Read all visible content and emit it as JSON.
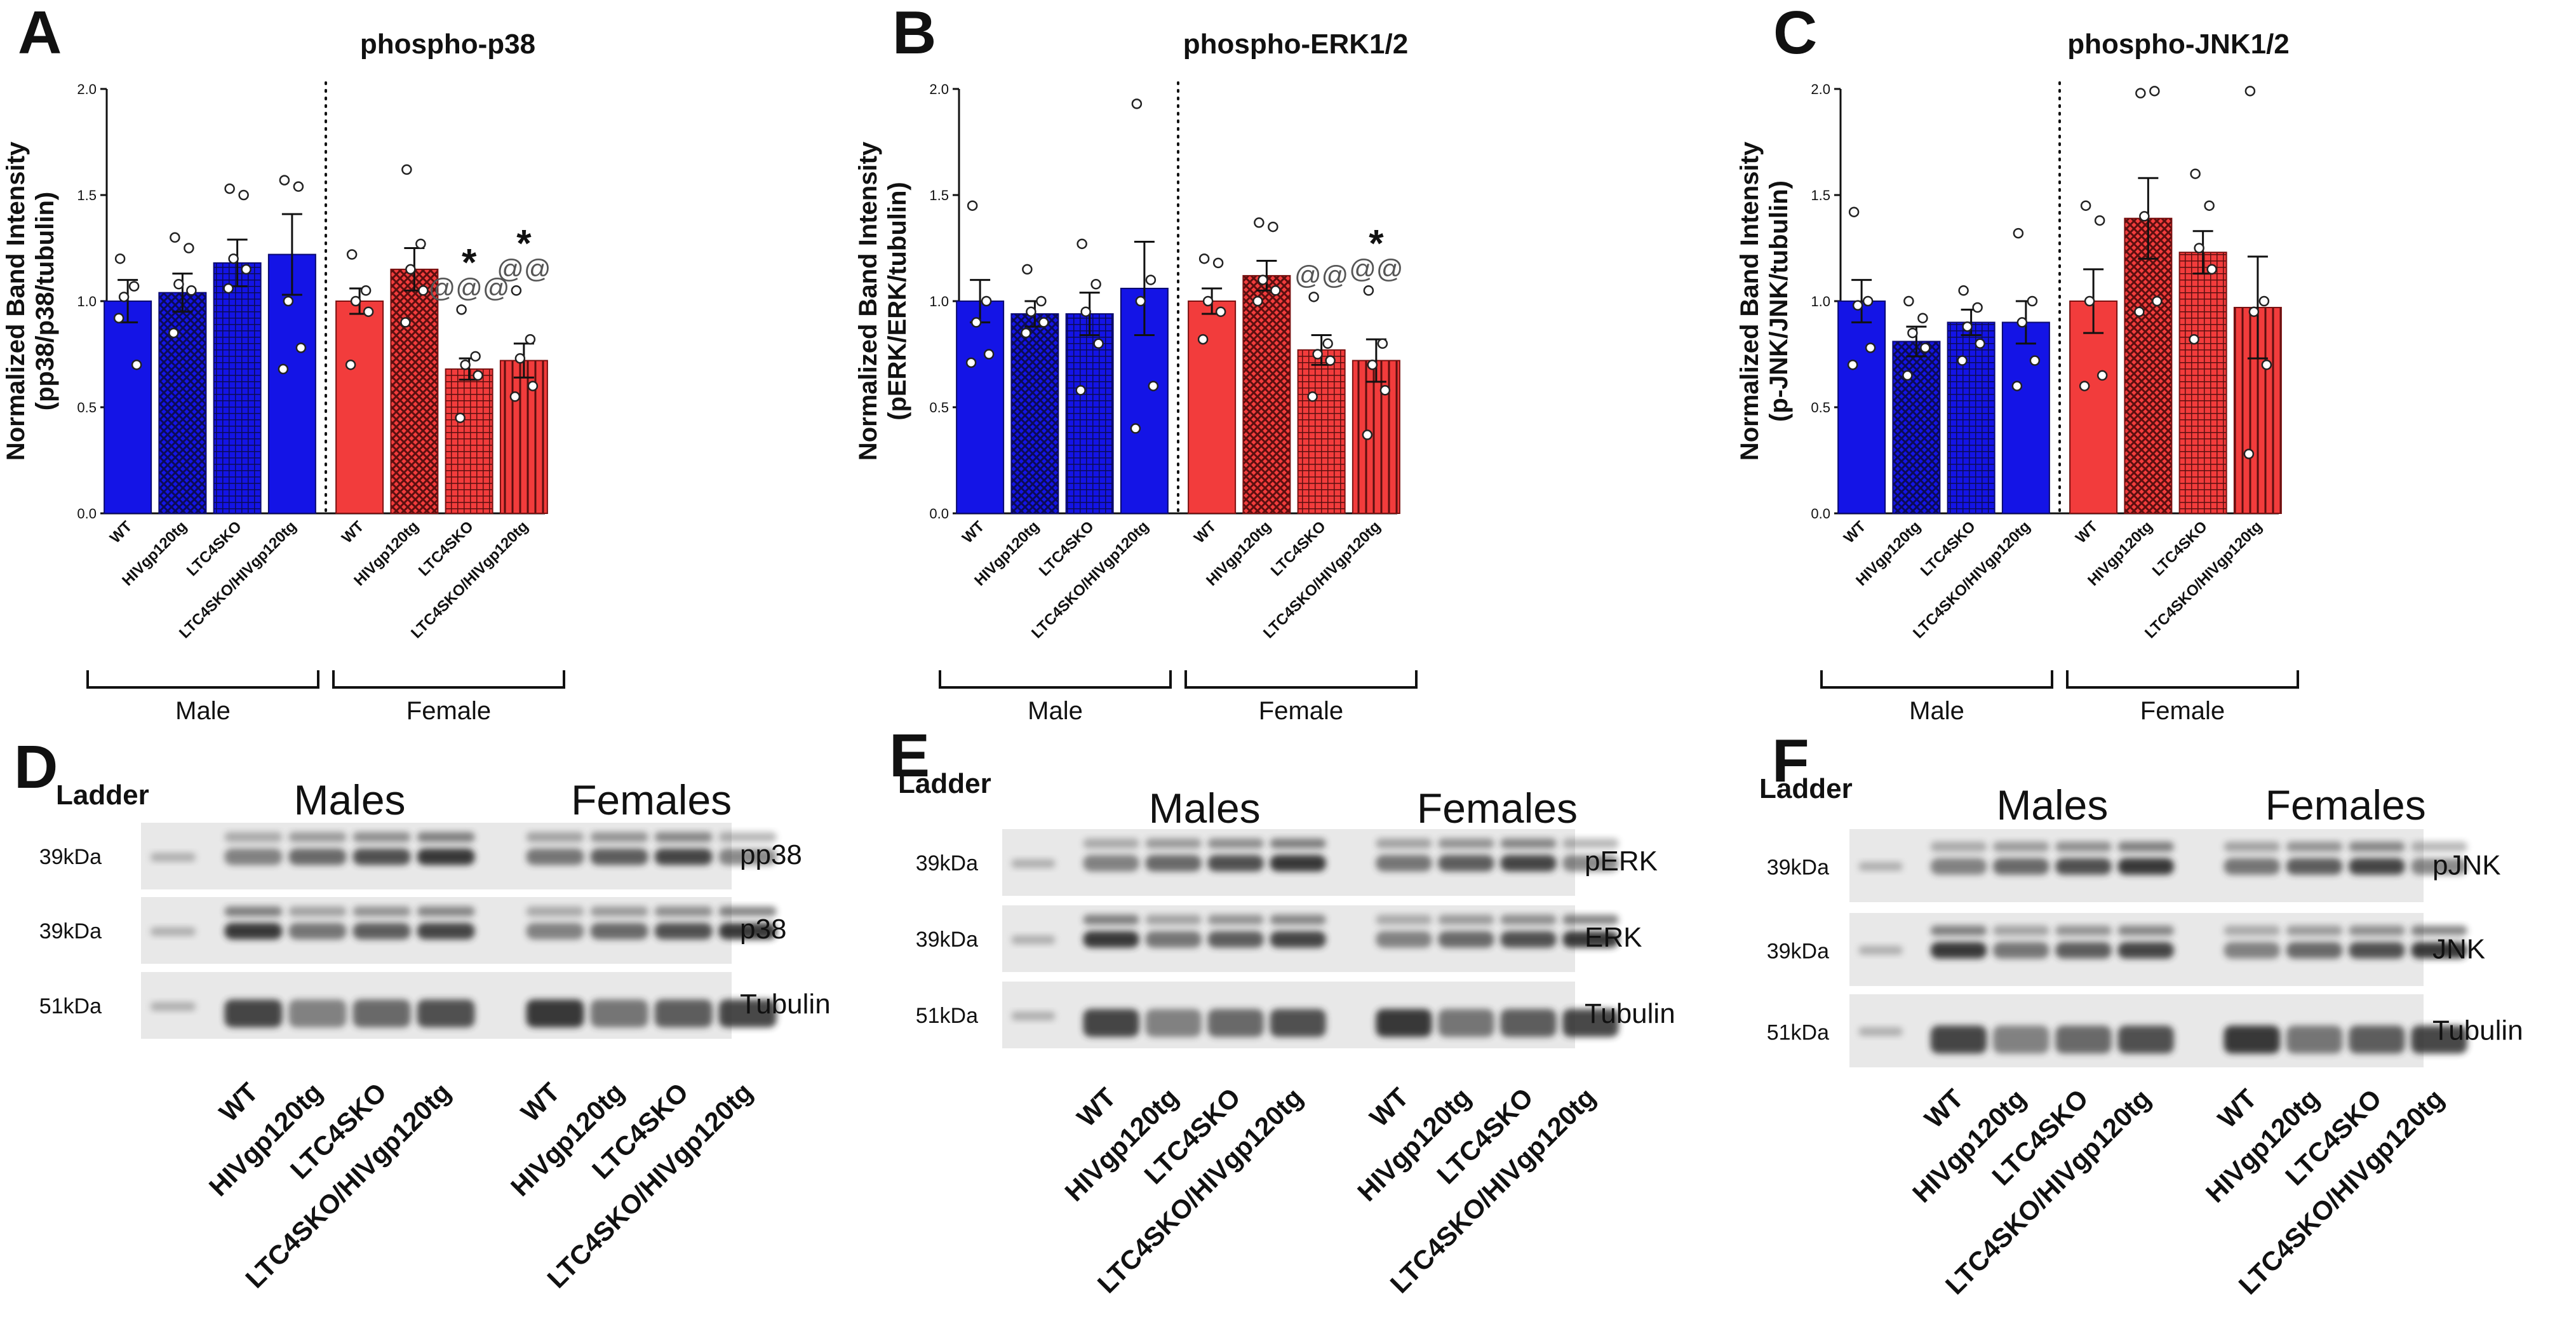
{
  "chart_data": [
    {
      "type": "bar",
      "panel": "A",
      "title": "phospho-p38",
      "ylabel": "Normalized Band Intensity (pp38/p38/tubulin)",
      "ylabel_lines": [
        "Normalized Band Intensity",
        "(pp38/p38/tubulin)"
      ],
      "ylim": [
        0,
        2
      ],
      "yticks": [
        "0.0",
        "0.5",
        "1.0",
        "1.5",
        "2.0"
      ],
      "categories": [
        "WT",
        "HIVgp120tg",
        "LTC4SKO",
        "LTC4SKO/HIVgp120tg",
        "WT",
        "HIVgp120tg",
        "LTC4SKO",
        "LTC4SKO/HIVgp120tg"
      ],
      "groups": [
        "Male",
        "Female"
      ],
      "sex": [
        "M",
        "M",
        "M",
        "M",
        "F",
        "F",
        "F",
        "F"
      ],
      "patterns": [
        "solid",
        "cross",
        "grid",
        "solid",
        "solid",
        "cross",
        "grid",
        "vstripe"
      ],
      "values": [
        1.0,
        1.04,
        1.18,
        1.22,
        1.0,
        1.15,
        0.68,
        0.72
      ],
      "errors": [
        0.1,
        0.09,
        0.11,
        0.19,
        0.06,
        0.1,
        0.05,
        0.08
      ],
      "points": [
        [
          1.2,
          1.07,
          1.02,
          0.7,
          0.92
        ],
        [
          1.3,
          1.25,
          1.08,
          1.05,
          0.85
        ],
        [
          1.53,
          1.5,
          1.2,
          1.15,
          1.06
        ],
        [
          1.57,
          1.54,
          1.0,
          0.78,
          0.68
        ],
        [
          1.22,
          1.05,
          1.0,
          0.95,
          0.7
        ],
        [
          1.62,
          1.27,
          1.15,
          1.05,
          0.9
        ],
        [
          0.96,
          0.74,
          0.7,
          0.65,
          0.45
        ],
        [
          1.05,
          0.82,
          0.73,
          0.6,
          0.55
        ]
      ],
      "annotations": [
        {
          "index": 6,
          "labels": [
            "*",
            "@@@"
          ]
        },
        {
          "index": 7,
          "labels": [
            "*",
            "@@"
          ]
        }
      ]
    },
    {
      "type": "bar",
      "panel": "B",
      "title": "phospho-ERK1/2",
      "ylabel": "Normalized Band Intensity (pERK/ERK/tubulin)",
      "ylabel_lines": [
        "Normalized Band Intensity",
        "(pERK/ERK/tubulin)"
      ],
      "ylim": [
        0,
        2
      ],
      "yticks": [
        "0.0",
        "0.5",
        "1.0",
        "1.5",
        "2.0"
      ],
      "categories": [
        "WT",
        "HIVgp120tg",
        "LTC4SKO",
        "LTC4SKO/HIVgp120tg",
        "WT",
        "HIVgp120tg",
        "LTC4SKO",
        "LTC4SKO/HIVgp120tg"
      ],
      "groups": [
        "Male",
        "Female"
      ],
      "sex": [
        "M",
        "M",
        "M",
        "M",
        "F",
        "F",
        "F",
        "F"
      ],
      "patterns": [
        "solid",
        "cross",
        "grid",
        "solid",
        "solid",
        "cross",
        "grid",
        "vstripe"
      ],
      "values": [
        1.0,
        0.94,
        0.94,
        1.06,
        1.0,
        1.12,
        0.77,
        0.72
      ],
      "errors": [
        0.1,
        0.06,
        0.1,
        0.22,
        0.06,
        0.07,
        0.07,
        0.1
      ],
      "points": [
        [
          1.45,
          1.0,
          0.9,
          0.75,
          0.71
        ],
        [
          1.15,
          1.0,
          0.95,
          0.9,
          0.85
        ],
        [
          1.27,
          1.08,
          0.95,
          0.8,
          0.58
        ],
        [
          1.93,
          1.1,
          1.0,
          0.6,
          0.4
        ],
        [
          1.2,
          1.18,
          1.0,
          0.95,
          0.82
        ],
        [
          1.37,
          1.35,
          1.1,
          1.05,
          1.0
        ],
        [
          1.02,
          0.8,
          0.75,
          0.72,
          0.55
        ],
        [
          1.05,
          0.8,
          0.7,
          0.58,
          0.37
        ]
      ],
      "annotations": [
        {
          "index": 6,
          "labels": [
            "@@"
          ]
        },
        {
          "index": 7,
          "labels": [
            "*",
            "@@"
          ]
        }
      ]
    },
    {
      "type": "bar",
      "panel": "C",
      "title": "phospho-JNK1/2",
      "ylabel": "Normalized Band Intensity (p-JNK/JNK/tubulin)",
      "ylabel_lines": [
        "Normalized Band Intensity",
        "(p-JNK/JNK/tubulin)"
      ],
      "ylim": [
        0,
        2
      ],
      "yticks": [
        "0.0",
        "0.5",
        "1.0",
        "1.5",
        "2.0"
      ],
      "categories": [
        "WT",
        "HIVgp120tg",
        "LTC4SKO",
        "LTC4SKO/HIVgp120tg",
        "WT",
        "HIVgp120tg",
        "LTC4SKO",
        "LTC4SKO/HIVgp120tg"
      ],
      "groups": [
        "Male",
        "Female"
      ],
      "sex": [
        "M",
        "M",
        "M",
        "M",
        "F",
        "F",
        "F",
        "F"
      ],
      "patterns": [
        "solid",
        "cross",
        "grid",
        "solid",
        "solid",
        "cross",
        "grid",
        "vstripe"
      ],
      "values": [
        1.0,
        0.81,
        0.9,
        0.9,
        1.0,
        1.39,
        1.23,
        0.97
      ],
      "errors": [
        0.1,
        0.07,
        0.06,
        0.1,
        0.15,
        0.19,
        0.1,
        0.24
      ],
      "points": [
        [
          1.42,
          1.0,
          0.98,
          0.78,
          0.7
        ],
        [
          1.0,
          0.92,
          0.85,
          0.78,
          0.65
        ],
        [
          1.05,
          0.97,
          0.88,
          0.8,
          0.72
        ],
        [
          1.32,
          1.0,
          0.9,
          0.72,
          0.6
        ],
        [
          1.45,
          1.38,
          1.0,
          0.65,
          0.6
        ],
        [
          1.98,
          1.99,
          1.4,
          1.0,
          0.95
        ],
        [
          1.6,
          1.45,
          1.25,
          1.15,
          0.82
        ],
        [
          1.99,
          1.0,
          0.95,
          0.7,
          0.28
        ]
      ],
      "annotations": []
    }
  ],
  "blots": [
    {
      "panel": "D",
      "ladder": "Ladder",
      "headers": [
        "Males",
        "Females"
      ],
      "rows": [
        {
          "marker": "39kDa",
          "label": "pp38"
        },
        {
          "marker": "39kDa",
          "label": "p38"
        },
        {
          "marker": "51kDa",
          "label": "Tubulin"
        }
      ],
      "lanes": [
        "WT",
        "HIVgp120tg",
        "LTC4SKO",
        "LTC4SKO/HIVgp120tg",
        "WT",
        "HIVgp120tg",
        "LTC4SKO",
        "LTC4SKO/HIVgp120tg"
      ]
    },
    {
      "panel": "E",
      "ladder": "Ladder",
      "headers": [
        "Males",
        "Females"
      ],
      "rows": [
        {
          "marker": "39kDa",
          "label": "pERK"
        },
        {
          "marker": "39kDa",
          "label": "ERK"
        },
        {
          "marker": "51kDa",
          "label": "Tubulin"
        }
      ],
      "lanes": [
        "WT",
        "HIVgp120tg",
        "LTC4SKO",
        "LTC4SKO/HIVgp120tg",
        "WT",
        "HIVgp120tg",
        "LTC4SKO",
        "LTC4SKO/HIVgp120tg"
      ]
    },
    {
      "panel": "F",
      "ladder": "Ladder",
      "headers": [
        "Males",
        "Females"
      ],
      "rows": [
        {
          "marker": "39kDa",
          "label": "pJNK"
        },
        {
          "marker": "39kDa",
          "label": "JNK"
        },
        {
          "marker": "51kDa",
          "label": "Tubulin"
        }
      ],
      "lanes": [
        "WT",
        "HIVgp120tg",
        "LTC4SKO",
        "LTC4SKO/HIVgp120tg",
        "WT",
        "HIVgp120tg",
        "LTC4SKO",
        "LTC4SKO/HIVgp120tg"
      ]
    }
  ],
  "colors": {
    "male": "#1414e6",
    "female": "#f23c3c",
    "male_pattern": "#0b0b55",
    "female_pattern": "#5a0f0f",
    "blot_bg": "#e8e8e8",
    "band": "#2f2f2f"
  }
}
